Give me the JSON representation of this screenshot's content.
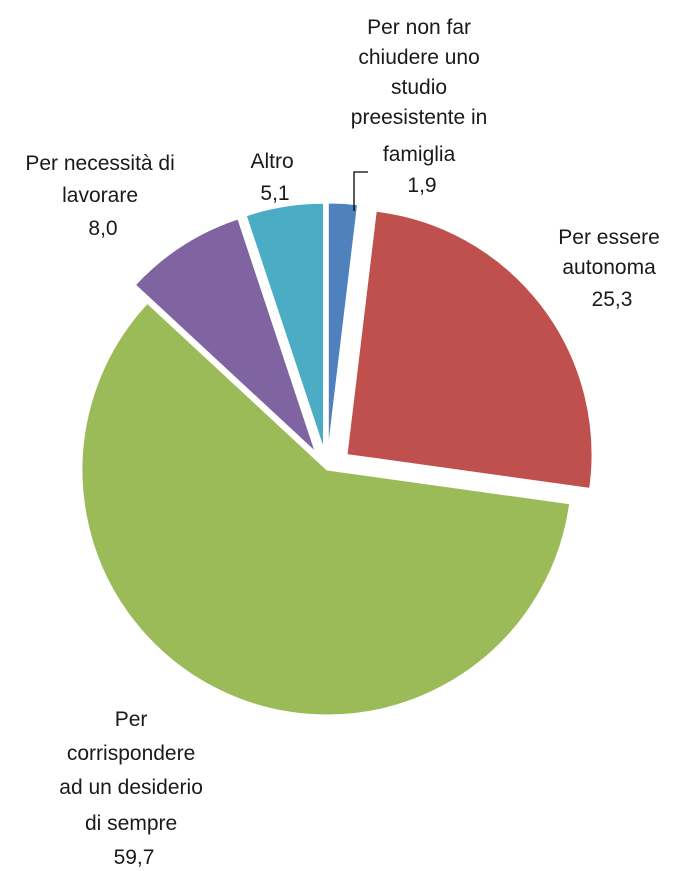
{
  "chart_data": {
    "type": "pie",
    "title": "",
    "start_angle_deg": 90,
    "direction": "clockwise",
    "exploded": true,
    "slices": [
      {
        "label_lines": [
          "Per non far",
          "chiudere uno",
          "studio",
          "preesistente in",
          "famiglia"
        ],
        "value": 1.9,
        "value_label": "1,9",
        "color": "#4F81BD"
      },
      {
        "label_lines": [
          "Per essere",
          "autonoma"
        ],
        "value": 25.3,
        "value_label": "25,3",
        "color": "#C0504D"
      },
      {
        "label_lines": [
          "Per",
          "corrispondere",
          "ad un desiderio",
          "di sempre"
        ],
        "value": 59.7,
        "value_label": "59,7",
        "color": "#9BBB59"
      },
      {
        "label_lines": [
          "Per necessità di",
          "lavorare"
        ],
        "value": 8.0,
        "value_label": "8,0",
        "color": "#8064A2"
      },
      {
        "label_lines": [
          "Altro"
        ],
        "value": 5.1,
        "value_label": "5,1",
        "color": "#4BACC6"
      }
    ]
  }
}
